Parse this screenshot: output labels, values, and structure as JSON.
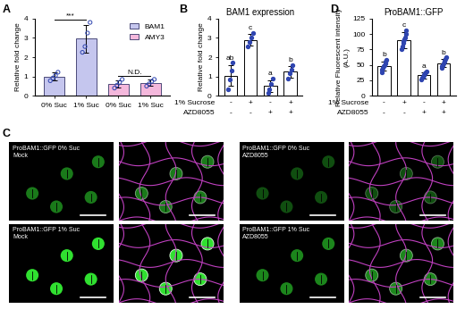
{
  "chart_data": [
    {
      "panel": "A",
      "type": "bar",
      "y_label": "Relative fold change",
      "categories": [
        "0% Suc",
        "1% Suc",
        "0% Suc",
        "1% Suc"
      ],
      "ylim": [
        0,
        4
      ],
      "yticks": [
        0,
        1,
        2,
        3,
        4
      ],
      "legend": "upper right",
      "series": [
        {
          "name": "BAM1",
          "color": "#c5c6ee",
          "values": [
            1.0,
            2.95,
            null,
            null
          ],
          "errors": [
            0.2,
            0.7,
            null,
            null
          ],
          "points": [
            [
              0.78,
              0.92,
              1.05,
              1.22
            ],
            [
              2.25,
              2.55,
              3.25,
              3.8
            ],
            null,
            null
          ],
          "annotation": "***"
        },
        {
          "name": "AMY3",
          "color": "#f4b8dc",
          "values": [
            null,
            null,
            0.62,
            0.68
          ],
          "errors": [
            null,
            null,
            0.2,
            0.15
          ],
          "points": [
            null,
            null,
            [
              0.4,
              0.55,
              0.7,
              0.85
            ],
            [
              0.5,
              0.62,
              0.75,
              0.85
            ]
          ],
          "annotation": "N.D."
        }
      ]
    },
    {
      "panel": "B",
      "type": "bar",
      "title": "BAM1 expression",
      "y_label": "Relative fold change",
      "ylim": [
        0,
        4
      ],
      "yticks": [
        0,
        1,
        2,
        3,
        4
      ],
      "color": "#ffffff",
      "values": [
        1.05,
        2.9,
        0.5,
        1.25
      ],
      "errors": [
        0.55,
        0.3,
        0.3,
        0.3
      ],
      "points": [
        [
          0.35,
          0.85,
          1.3,
          1.7
        ],
        [
          2.55,
          2.8,
          3.0,
          3.25
        ],
        [
          0.15,
          0.35,
          0.6,
          0.9
        ],
        [
          0.9,
          1.15,
          1.35,
          1.6
        ]
      ],
      "letters": [
        "ab",
        "c",
        "a",
        "b"
      ],
      "treatments": [
        {
          "name": "1% Sucrose",
          "values": [
            "-",
            "+",
            "-",
            "+"
          ]
        },
        {
          "name": "AZD8055",
          "values": [
            "-",
            "-",
            "+",
            "+"
          ]
        }
      ]
    },
    {
      "panel": "D",
      "type": "bar",
      "title": "ProBAM1::GFP",
      "y_label": "Relative Fluorescent intensity (A.U.)",
      "ylim": [
        0,
        125
      ],
      "yticks": [
        0,
        25,
        50,
        75,
        100,
        125
      ],
      "color": "#ffffff",
      "values": [
        48,
        90,
        33,
        53
      ],
      "errors": [
        7,
        13,
        5,
        6
      ],
      "points": [
        [
          38,
          42,
          45,
          48,
          50,
          52,
          55,
          58
        ],
        [
          75,
          80,
          85,
          88,
          92,
          95,
          100,
          106
        ],
        [
          27,
          29,
          31,
          33,
          34,
          36,
          38,
          40
        ],
        [
          45,
          48,
          50,
          53,
          55,
          57,
          60,
          62
        ]
      ],
      "letters": [
        "b",
        "c",
        "a",
        "b"
      ],
      "treatments": [
        {
          "name": "1% Sucrose",
          "values": [
            "-",
            "+",
            "-",
            "+"
          ]
        },
        {
          "name": "AZD8055",
          "values": [
            "-",
            "-",
            "+",
            "+"
          ]
        }
      ]
    }
  ],
  "images": {
    "panel": "C",
    "conditions": [
      {
        "label_lines": [
          "ProBAM1::GFP 0% Suc",
          "Mock"
        ]
      },
      {
        "label_lines": [
          "ProBAM1::GFP 1% Suc",
          "Mock"
        ]
      },
      {
        "label_lines": [
          "ProBAM1::GFP 0% Suc",
          "AZD8055"
        ]
      },
      {
        "label_lines": [
          "ProBAM1::GFP 1% Suc",
          "AZD8055"
        ]
      }
    ]
  }
}
